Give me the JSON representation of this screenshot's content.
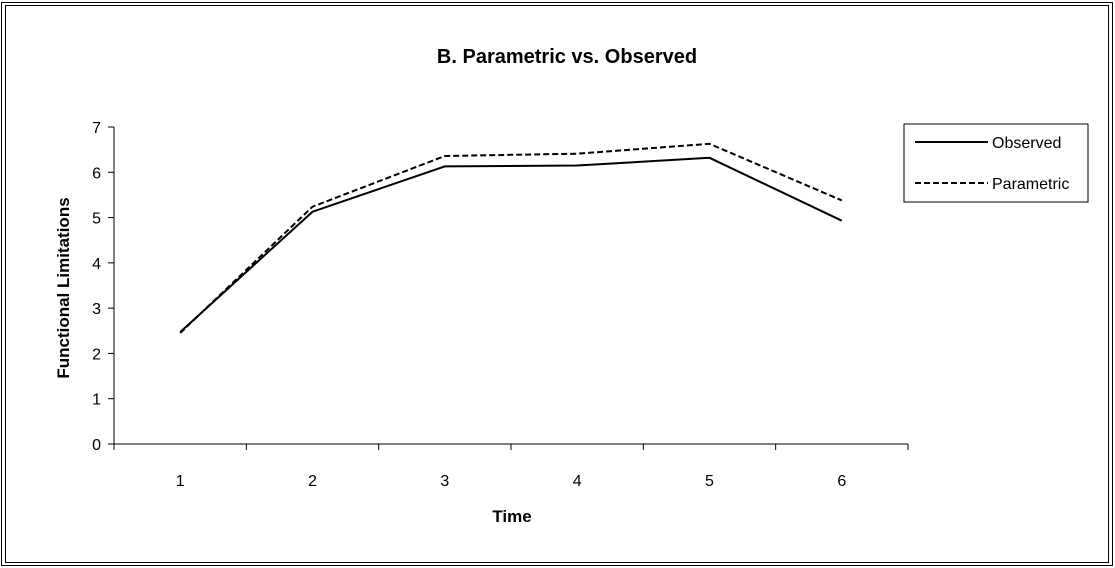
{
  "chart_data": {
    "type": "line",
    "title": "B. Parametric vs. Observed",
    "xlabel": "Time",
    "ylabel": "Functional Limitations",
    "categories": [
      "1",
      "2",
      "3",
      "4",
      "5",
      "6"
    ],
    "ylim": [
      0,
      7
    ],
    "yticks": [
      "0",
      "1",
      "2",
      "3",
      "4",
      "5",
      "6",
      "7"
    ],
    "grid": false,
    "legend_position": "right",
    "series": [
      {
        "name": "Observed",
        "style": "solid",
        "color": "#000000",
        "values": [
          2.47,
          5.13,
          6.13,
          6.15,
          6.32,
          4.93
        ]
      },
      {
        "name": "Parametric",
        "style": "dashed",
        "color": "#000000",
        "values": [
          2.45,
          5.24,
          6.36,
          6.41,
          6.63,
          5.38
        ]
      }
    ]
  }
}
